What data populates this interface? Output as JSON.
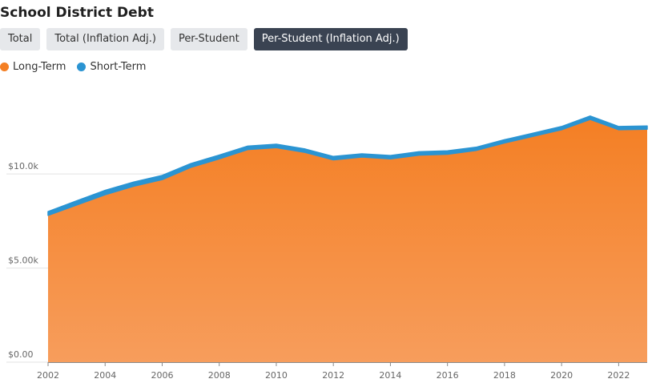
{
  "title": "School District Debt",
  "tabs": [
    {
      "label": "Total",
      "active": false
    },
    {
      "label": "Total (Inflation Adj.)",
      "active": false
    },
    {
      "label": "Per-Student",
      "active": false
    },
    {
      "label": "Per-Student (Inflation Adj.)",
      "active": true
    }
  ],
  "colors": {
    "long_term_top": "#f47f24",
    "long_term_bottom": "#f79d5c",
    "short_term": "#2b94d2",
    "active_tab": "#3a4352"
  },
  "chart_data": {
    "type": "area",
    "stacked": true,
    "x": [
      2002,
      2003,
      2004,
      2005,
      2006,
      2007,
      2008,
      2009,
      2010,
      2011,
      2012,
      2013,
      2014,
      2015,
      2016,
      2017,
      2018,
      2019,
      2020,
      2021,
      2022,
      2023
    ],
    "series": [
      {
        "name": "Long-Term",
        "color": "#f47f24",
        "values": [
          7800,
          8350,
          8900,
          9350,
          9700,
          10350,
          10800,
          11300,
          11400,
          11150,
          10750,
          10900,
          10800,
          11000,
          11050,
          11250,
          11650,
          12000,
          12350,
          12900,
          12350,
          12380
        ]
      },
      {
        "name": "Short-Term",
        "color": "#2b94d2",
        "values": [
          200,
          220,
          230,
          220,
          220,
          200,
          200,
          180,
          180,
          180,
          180,
          170,
          180,
          180,
          180,
          170,
          170,
          170,
          170,
          180,
          170,
          170
        ]
      }
    ],
    "xticks": [
      "2002",
      "2004",
      "2006",
      "2008",
      "2010",
      "2012",
      "2014",
      "2016",
      "2018",
      "2020",
      "2022"
    ],
    "yticks": [
      {
        "value": 0,
        "label": "$0.00"
      },
      {
        "value": 5000,
        "label": "$5.00k"
      },
      {
        "value": 10000,
        "label": "$10.0k"
      }
    ],
    "xlim": [
      2002,
      2023
    ],
    "ylim": [
      0,
      15200
    ],
    "grid": true,
    "legend_position": "top-left"
  }
}
